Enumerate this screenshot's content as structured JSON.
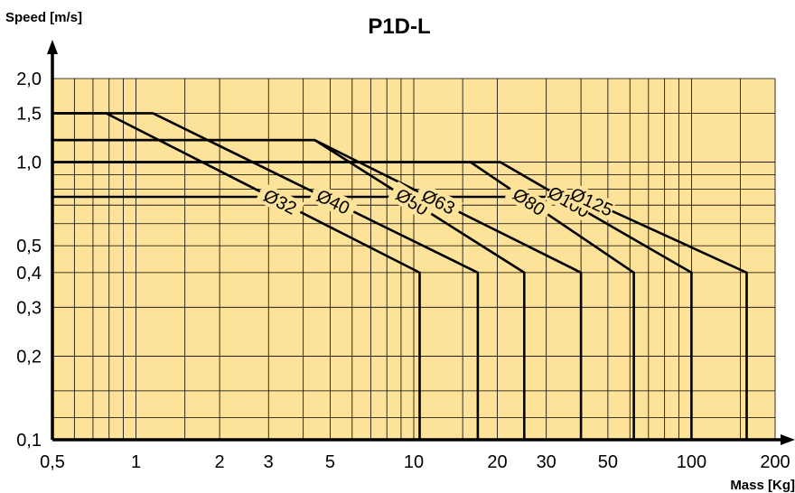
{
  "chart_data": {
    "type": "line",
    "title": "P1D-L",
    "ylabel": "Speed [m/s]",
    "xlabel": "Mass [Kg]",
    "x_scale": "log",
    "y_scale": "log",
    "xlim": [
      0.5,
      200
    ],
    "ylim": [
      0.1,
      2.0
    ],
    "x_tick_labels": [
      {
        "value": 0.5,
        "label": "0,5"
      },
      {
        "value": 1,
        "label": "1"
      },
      {
        "value": 2,
        "label": "2"
      },
      {
        "value": 3,
        "label": "3"
      },
      {
        "value": 5,
        "label": "5"
      },
      {
        "value": 10,
        "label": "10"
      },
      {
        "value": 20,
        "label": "20"
      },
      {
        "value": 30,
        "label": "30"
      },
      {
        "value": 50,
        "label": "50"
      },
      {
        "value": 100,
        "label": "100"
      },
      {
        "value": 200,
        "label": "200"
      }
    ],
    "y_tick_labels": [
      {
        "value": 0.1,
        "label": "0,1"
      },
      {
        "value": 0.2,
        "label": "0,2"
      },
      {
        "value": 0.3,
        "label": "0,3"
      },
      {
        "value": 0.4,
        "label": "0,4"
      },
      {
        "value": 0.5,
        "label": "0,5"
      },
      {
        "value": 1.0,
        "label": "1,0"
      },
      {
        "value": 1.5,
        "label": "1,5"
      },
      {
        "value": 2.0,
        "label": "2,0"
      }
    ],
    "grid": true,
    "grid_x": [
      0.6,
      0.7,
      0.8,
      0.9,
      1,
      1.5,
      2,
      3,
      4,
      5,
      6,
      7,
      8,
      9,
      10,
      15,
      20,
      30,
      40,
      50,
      60,
      70,
      80,
      90,
      100,
      150
    ],
    "grid_y": [
      0.12,
      0.15,
      0.2,
      0.3,
      0.4,
      0.5,
      0.6,
      0.7,
      0.8,
      0.9,
      1.0,
      1.5
    ],
    "background_color": "#fde299",
    "line_color": "#000000",
    "series": [
      {
        "name": "Ø32",
        "x": [
          0.5,
          0.78,
          10.5,
          10.5
        ],
        "y": [
          1.5,
          1.5,
          0.4,
          0.1
        ]
      },
      {
        "name": "Ø40",
        "x": [
          0.5,
          1.15,
          17,
          17
        ],
        "y": [
          1.5,
          1.5,
          0.4,
          0.1
        ]
      },
      {
        "name": "Ø50",
        "x": [
          0.5,
          4.4,
          25,
          25
        ],
        "y": [
          1.2,
          1.2,
          0.4,
          0.1
        ]
      },
      {
        "name": "Ø63",
        "x": [
          0.5,
          4.4,
          40,
          40
        ],
        "y": [
          1.2,
          1.2,
          0.4,
          0.1
        ]
      },
      {
        "name": "Ø80",
        "x": [
          0.5,
          16,
          62,
          62
        ],
        "y": [
          1.0,
          1.0,
          0.4,
          0.1
        ]
      },
      {
        "name": "Ø100",
        "x": [
          0.5,
          20.5,
          100,
          100
        ],
        "y": [
          1.0,
          1.0,
          0.4,
          0.1
        ]
      },
      {
        "name": "Ø125",
        "x": [
          0.5,
          40,
          158,
          158
        ],
        "y": [
          0.75,
          0.75,
          0.4,
          0.1
        ]
      }
    ]
  }
}
